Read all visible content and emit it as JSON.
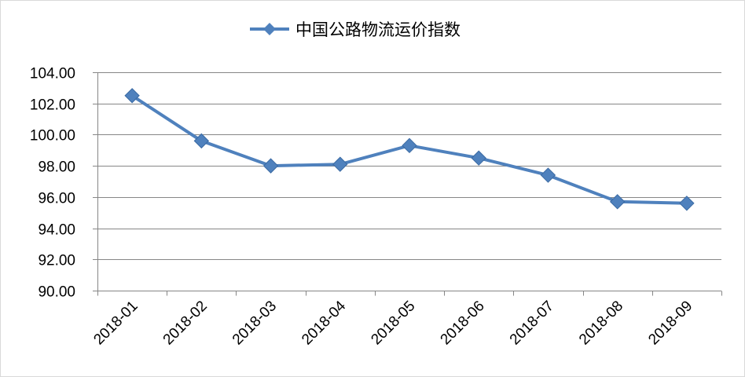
{
  "chart_data": {
    "type": "line",
    "title": "",
    "xlabel": "",
    "ylabel": "",
    "categories": [
      "2018-01",
      "2018-02",
      "2018-03",
      "2018-04",
      "2018-05",
      "2018-06",
      "2018-07",
      "2018-08",
      "2018-09"
    ],
    "series": [
      {
        "name": "中国公路物流运价指数",
        "values": [
          102.5,
          99.6,
          98.0,
          98.1,
          99.3,
          98.5,
          97.4,
          95.7,
          95.6
        ],
        "color": "#4f81bd",
        "marker": "diamond"
      }
    ],
    "ylim": [
      90,
      104
    ],
    "yticks": [
      "90.00",
      "92.00",
      "94.00",
      "96.00",
      "98.00",
      "100.00",
      "102.00",
      "104.00"
    ],
    "grid": true,
    "legend_position": "top"
  }
}
